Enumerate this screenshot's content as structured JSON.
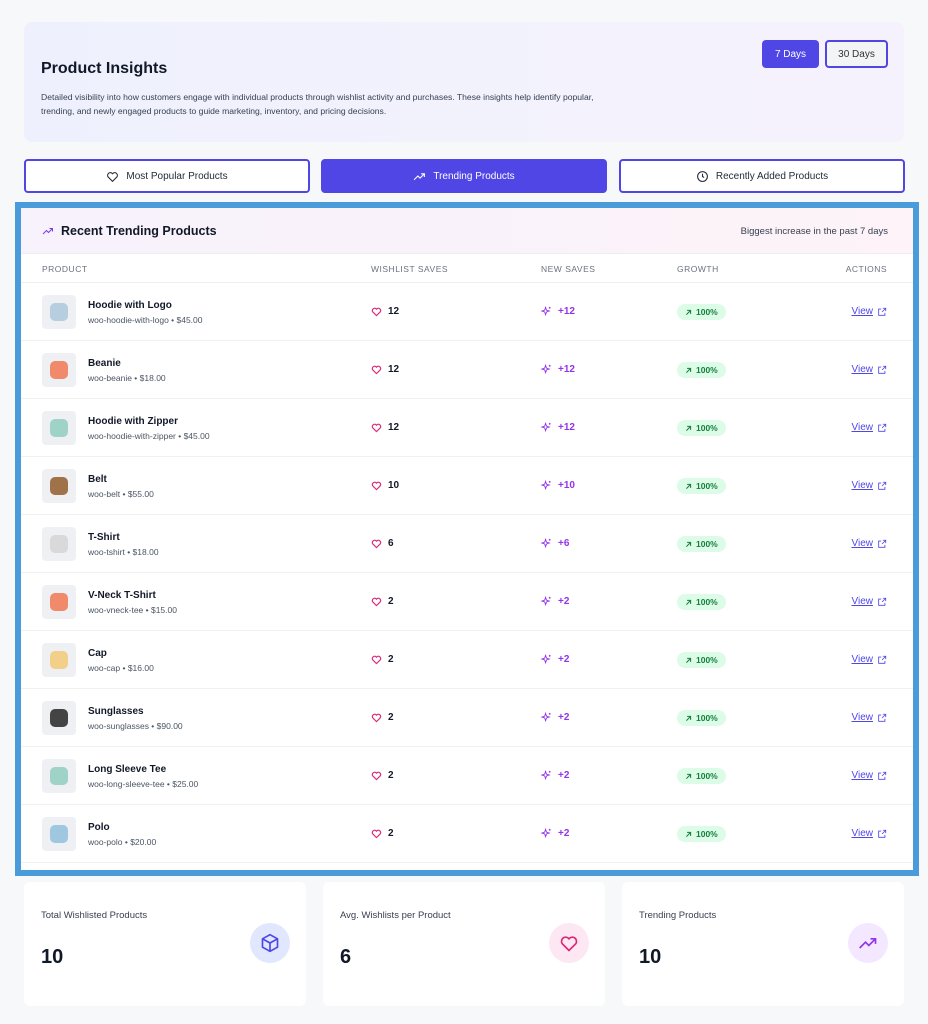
{
  "header": {
    "title": "Product Insights",
    "description": "Detailed visibility into how customers engage with individual products through wishlist activity and purchases. These insights help identify popular, trending, and newly engaged products to guide marketing, inventory, and pricing decisions.",
    "range_buttons": [
      "7 Days",
      "30 Days"
    ]
  },
  "tabs": [
    "Most Popular Products",
    "Trending Products",
    "Recently Added Products"
  ],
  "panel": {
    "title": "Recent Trending Products",
    "subtitle": "Biggest increase in the past 7 days",
    "columns": [
      "PRODUCT",
      "WISHLIST SAVES",
      "NEW SAVES",
      "GROWTH",
      "ACTIONS"
    ],
    "rows": [
      {
        "name": "Hoodie with Logo",
        "meta": "woo-hoodie-with-logo • $45.00",
        "wishlist_saves": 12,
        "new_saves": "+12",
        "growth": "100%",
        "action": "View"
      },
      {
        "name": "Beanie",
        "meta": "woo-beanie • $18.00",
        "wishlist_saves": 12,
        "new_saves": "+12",
        "growth": "100%",
        "action": "View"
      },
      {
        "name": "Hoodie with Zipper",
        "meta": "woo-hoodie-with-zipper • $45.00",
        "wishlist_saves": 12,
        "new_saves": "+12",
        "growth": "100%",
        "action": "View"
      },
      {
        "name": "Belt",
        "meta": "woo-belt • $55.00",
        "wishlist_saves": 10,
        "new_saves": "+10",
        "growth": "100%",
        "action": "View"
      },
      {
        "name": "T-Shirt",
        "meta": "woo-tshirt • $18.00",
        "wishlist_saves": 6,
        "new_saves": "+6",
        "growth": "100%",
        "action": "View"
      },
      {
        "name": "V-Neck T-Shirt",
        "meta": "woo-vneck-tee • $15.00",
        "wishlist_saves": 2,
        "new_saves": "+2",
        "growth": "100%",
        "action": "View"
      },
      {
        "name": "Cap",
        "meta": "woo-cap • $16.00",
        "wishlist_saves": 2,
        "new_saves": "+2",
        "growth": "100%",
        "action": "View"
      },
      {
        "name": "Sunglasses",
        "meta": "woo-sunglasses • $90.00",
        "wishlist_saves": 2,
        "new_saves": "+2",
        "growth": "100%",
        "action": "View"
      },
      {
        "name": "Long Sleeve Tee",
        "meta": "woo-long-sleeve-tee • $25.00",
        "wishlist_saves": 2,
        "new_saves": "+2",
        "growth": "100%",
        "action": "View"
      },
      {
        "name": "Polo",
        "meta": "woo-polo • $20.00",
        "wishlist_saves": 2,
        "new_saves": "+2",
        "growth": "100%",
        "action": "View"
      }
    ]
  },
  "stats": [
    {
      "label": "Total Wishlisted Products",
      "value": 10
    },
    {
      "label": "Avg. Wishlists per Product",
      "value": 6
    },
    {
      "label": "Trending Products",
      "value": 10
    }
  ]
}
